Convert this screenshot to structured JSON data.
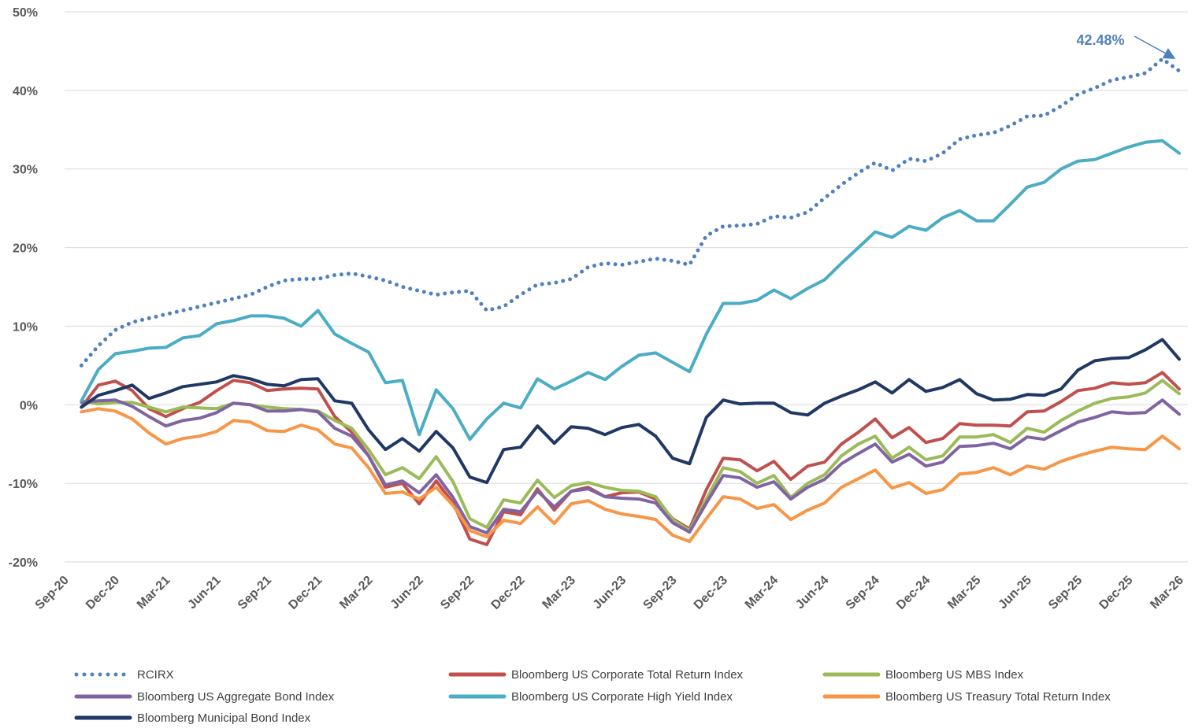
{
  "chart_data": {
    "type": "line",
    "annotation": "42.48%",
    "categories": [
      "Sep-20",
      null,
      null,
      "Dec-20",
      null,
      null,
      "Mar-21",
      null,
      null,
      "Jun-21",
      null,
      null,
      "Sep-21",
      null,
      null,
      "Dec-21",
      null,
      null,
      "Mar-22",
      null,
      null,
      "Jun-22",
      null,
      null,
      "Sep-22",
      null,
      null,
      "Dec-22",
      null,
      null,
      "Mar-23",
      null,
      null,
      "Jun-23",
      null,
      null,
      "Sep-23",
      null,
      null,
      "Dec-23",
      null,
      null,
      "Mar-24",
      null,
      null,
      "Jun-24",
      null,
      null,
      "Sep-24",
      null,
      null,
      "Dec-24",
      null,
      null,
      "Mar-25",
      null,
      null,
      "Jun-25",
      null,
      null,
      "Sep-25",
      null,
      null,
      "Dec-25",
      null,
      null,
      "Mar-26"
    ],
    "ylim": [
      -20,
      50
    ],
    "yticks": [
      {
        "value": -20,
        "label": "-20%"
      },
      {
        "value": -10,
        "label": "-10%"
      },
      {
        "value": 0,
        "label": "0%"
      },
      {
        "value": 10,
        "label": "10%"
      },
      {
        "value": 20,
        "label": "20%"
      },
      {
        "value": 30,
        "label": "30%"
      },
      {
        "value": 40,
        "label": "40%"
      },
      {
        "value": 50,
        "label": "50%"
      }
    ],
    "grid": true,
    "legend": "bottom",
    "series": [
      {
        "name": "RCIRX",
        "color": "#4f81bd",
        "line_style": "dotted",
        "values": [
          null,
          5,
          7.5,
          9.5,
          10.5,
          11,
          11.5,
          12,
          12.5,
          13,
          13.5,
          14,
          15,
          15.8,
          16,
          16,
          16.5,
          16.7,
          16.3,
          15.8,
          15,
          14.5,
          14,
          14.3,
          14.5,
          12,
          12.5,
          14,
          15.3,
          15.5,
          16,
          17.5,
          18,
          17.8,
          18.2,
          18.6,
          18.3,
          17.8,
          21.5,
          22.7,
          22.8,
          23,
          24,
          23.8,
          24.5,
          26.3,
          28,
          29.5,
          30.8,
          29.8,
          31.3,
          31,
          32,
          33.8,
          34.3,
          34.6,
          35.5,
          36.7,
          36.8,
          38,
          39.5,
          40.3,
          41.3,
          41.7,
          42.2,
          44,
          42.48
        ]
      },
      {
        "name": "Bloomberg US Corporate Total Return Index",
        "color": "#c0504d",
        "line_style": "solid",
        "values": [
          null,
          -0.3,
          2.5,
          3,
          1.8,
          -0.5,
          -1.5,
          -0.5,
          0.3,
          1.8,
          3.1,
          2.8,
          1.8,
          2,
          2.1,
          2,
          -1.5,
          -3.5,
          -6.5,
          -10.5,
          -10,
          -12.6,
          -9.7,
          -12.5,
          -17.1,
          -17.8,
          -13.6,
          -14,
          -10.7,
          -13.4,
          -11,
          -10.5,
          -11.7,
          -11.2,
          -11.1,
          -12,
          -14.5,
          -15.8,
          -10.8,
          -6.8,
          -7,
          -8.4,
          -7.2,
          -9.5,
          -7.8,
          -7.3,
          -5,
          -3.5,
          -1.8,
          -4.2,
          -2.9,
          -4.8,
          -4.3,
          -2.4,
          -2.6,
          -2.6,
          -2.7,
          -0.9,
          -0.8,
          0.4,
          1.8,
          2.1,
          2.8,
          2.6,
          2.8,
          4.1,
          2
        ]
      },
      {
        "name": "Bloomberg US MBS Index",
        "color": "#9bbb59",
        "line_style": "solid",
        "values": [
          null,
          0.5,
          0.1,
          0.3,
          0.3,
          -0.3,
          -0.9,
          -0.3,
          -0.4,
          -0.5,
          0.2,
          0,
          -0.3,
          -0.5,
          -0.6,
          -0.8,
          -2,
          -3,
          -5.7,
          -8.9,
          -8,
          -9.4,
          -6.6,
          -9.8,
          -14.5,
          -15.6,
          -12.1,
          -12.5,
          -9.6,
          -11.8,
          -10.3,
          -9.9,
          -10.5,
          -10.9,
          -11,
          -11.7,
          -14.6,
          -16,
          -12,
          -8,
          -8.5,
          -10,
          -9,
          -11.8,
          -10,
          -8.9,
          -6.5,
          -5,
          -4,
          -6.8,
          -5.4,
          -7,
          -6.5,
          -4.1,
          -4.1,
          -3.8,
          -4.8,
          -3,
          -3.5,
          -2,
          -0.8,
          0.2,
          0.8,
          1,
          1.5,
          3.1,
          1.4
        ]
      },
      {
        "name": "Bloomberg US Aggregate Bond Index",
        "color": "#8064a2",
        "line_style": "solid",
        "values": [
          null,
          0.3,
          0.5,
          0.6,
          -0.2,
          -1.5,
          -2.7,
          -2,
          -1.7,
          -1,
          0.2,
          0,
          -0.8,
          -0.8,
          -0.6,
          -0.9,
          -3,
          -4,
          -6.5,
          -10.2,
          -9.7,
          -11.2,
          -8.9,
          -11.8,
          -15.5,
          -16.3,
          -13.3,
          -13.6,
          -11,
          -13,
          -11,
          -10.7,
          -11.7,
          -11.9,
          -12,
          -12.5,
          -15,
          -16.2,
          -12.5,
          -9,
          -9.3,
          -10.5,
          -9.8,
          -12,
          -10.5,
          -9.5,
          -7.5,
          -6.2,
          -5,
          -7.3,
          -6.3,
          -7.8,
          -7.3,
          -5.3,
          -5.2,
          -4.9,
          -5.6,
          -4.1,
          -4.4,
          -3.3,
          -2.2,
          -1.6,
          -0.9,
          -1.1,
          -1,
          0.6,
          -1.2
        ]
      },
      {
        "name": "Bloomberg US Corporate High Yield Index",
        "color": "#4bacc6",
        "line_style": "solid",
        "values": [
          null,
          0.5,
          4.5,
          6.5,
          6.8,
          7.2,
          7.3,
          8.5,
          8.8,
          10.3,
          10.7,
          11.3,
          11.3,
          11,
          10,
          12,
          9,
          7.8,
          6.7,
          2.8,
          3.1,
          -3.8,
          1.9,
          -0.5,
          -4.4,
          -1.8,
          0.2,
          -0.4,
          3.3,
          2,
          3,
          4.1,
          3.2,
          4.9,
          6.3,
          6.6,
          5.4,
          4.2,
          9,
          12.9,
          12.9,
          13.3,
          14.6,
          13.5,
          14.8,
          15.9,
          18,
          20,
          22,
          21.3,
          22.7,
          22.2,
          23.8,
          24.7,
          23.4,
          23.4,
          25.5,
          27.7,
          28.3,
          30,
          31,
          31.2,
          32,
          32.8,
          33.4,
          33.6,
          32
        ]
      },
      {
        "name": "Bloomberg US Treasury Total Return Index",
        "color": "#f79646",
        "line_style": "solid",
        "values": [
          null,
          -0.9,
          -0.5,
          -0.8,
          -1.8,
          -3.6,
          -5,
          -4.3,
          -4,
          -3.4,
          -2,
          -2.2,
          -3.3,
          -3.4,
          -2.6,
          -3.2,
          -5,
          -5.5,
          -8,
          -11.3,
          -11.1,
          -12,
          -10.5,
          -12.8,
          -16,
          -16.8,
          -14.7,
          -15.1,
          -13,
          -15.1,
          -12.6,
          -12.2,
          -13.3,
          -13.9,
          -14.2,
          -14.6,
          -16.6,
          -17.4,
          -14.5,
          -11.7,
          -12,
          -13.2,
          -12.7,
          -14.6,
          -13.4,
          -12.5,
          -10.5,
          -9.4,
          -8.3,
          -10.6,
          -9.9,
          -11.3,
          -10.8,
          -8.8,
          -8.6,
          -8,
          -8.9,
          -7.8,
          -8.2,
          -7.2,
          -6.5,
          -5.9,
          -5.4,
          -5.6,
          -5.7,
          -4,
          -5.6
        ]
      },
      {
        "name": "Bloomberg Municipal Bond Index",
        "color": "#1f3864",
        "line_style": "solid",
        "values": [
          null,
          -0.3,
          1.2,
          1.8,
          2.5,
          0.8,
          1.5,
          2.3,
          2.6,
          2.9,
          3.7,
          3.3,
          2.6,
          2.4,
          3.2,
          3.3,
          0.5,
          0.2,
          -3.2,
          -5.7,
          -4.3,
          -5.9,
          -3.4,
          -5.5,
          -9.2,
          -9.9,
          -5.7,
          -5.4,
          -2.7,
          -4.9,
          -2.8,
          -3,
          -3.8,
          -2.9,
          -2.5,
          -4,
          -6.8,
          -7.5,
          -1.6,
          0.6,
          0.1,
          0.2,
          0.2,
          -1,
          -1.3,
          0.2,
          1.1,
          1.9,
          2.9,
          1.5,
          3.2,
          1.7,
          2.2,
          3.2,
          1.4,
          0.6,
          0.7,
          1.3,
          1.2,
          2,
          4.4,
          5.6,
          5.9,
          6,
          7,
          8.3,
          5.8
        ]
      }
    ]
  }
}
